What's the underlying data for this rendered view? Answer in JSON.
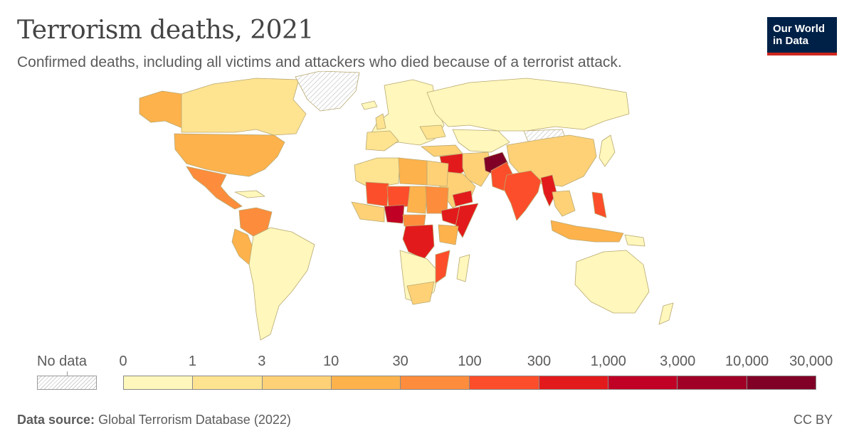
{
  "header": {
    "title": "Terrorism deaths, 2021",
    "subtitle": "Confirmed deaths, including all victims and attackers who died because of a terrorist attack."
  },
  "logo": {
    "line1": "Our World",
    "line2": "in Data"
  },
  "legend": {
    "no_data_label": "No data",
    "ticks": [
      "0",
      "1",
      "3",
      "10",
      "30",
      "100",
      "300",
      "1,000",
      "3,000",
      "10,000",
      "30,000"
    ],
    "colors": [
      "#fff7bc",
      "#fee391",
      "#fed177",
      "#feb24c",
      "#fd8d3c",
      "#fc4e2a",
      "#e31a1c",
      "#c00024",
      "#a10026",
      "#800026"
    ]
  },
  "footer": {
    "source_label": "Data source:",
    "source_text": "Global Terrorism Database (2022)",
    "license": "CC BY"
  },
  "colors": {
    "title": "#444444",
    "logo_bg": "#002147",
    "logo_accent": "#ce261e",
    "no_data_hatch": "#cfcfcf",
    "border": "#b8a870"
  }
}
